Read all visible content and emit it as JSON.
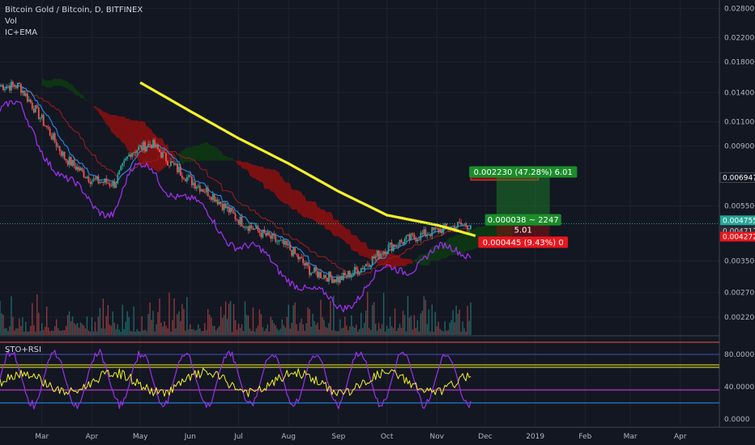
{
  "header": {
    "symbol_title": "Bitcoin Gold / Bitcoin, D, BITFINEX",
    "volume_label": "Vol",
    "indicator_label": "IC+EMA",
    "oscillator_label": "STO+RSI"
  },
  "colors": {
    "background": "#131722",
    "ema_line": "#f5f227",
    "rsi_line": "#9b30e8",
    "price_line_blue": "#2196f3",
    "cloud_bear": "#8b1010",
    "cloud_bull": "#0d3a12",
    "up_candle": "#26a69a",
    "down_candle": "#ef5350",
    "take_profit": "#1b8c2a",
    "stop_loss": "#e8161e"
  },
  "chart_data": [
    {
      "type": "candlestick",
      "scale": "log",
      "x_tick_labels": [
        "Mar",
        "Apr",
        "May",
        "Jun",
        "Jul",
        "Aug",
        "Sep",
        "Oct",
        "Nov",
        "Dec",
        "2019",
        "Feb",
        "Mar",
        "Apr"
      ],
      "y_tick_labels": [
        "0.028000",
        "0.022000",
        "0.018000",
        "0.014000",
        "0.011000",
        "0.009000",
        "0.005500",
        "0.003500",
        "0.002700",
        "0.002200"
      ],
      "y_tick_values": [
        0.028,
        0.022,
        0.018,
        0.014,
        0.011,
        0.009,
        0.0055,
        0.0035,
        0.0027,
        0.0022
      ],
      "ylim": [
        0.0019,
        0.03
      ],
      "close_path": [
        {
          "x": "2018-02-15",
          "y": 0.0148
        },
        {
          "x": "2018-03-01",
          "y": 0.0112
        },
        {
          "x": "2018-03-15",
          "y": 0.0082
        },
        {
          "x": "2018-04-01",
          "y": 0.0068
        },
        {
          "x": "2018-04-15",
          "y": 0.0066
        },
        {
          "x": "2018-04-25",
          "y": 0.0086
        },
        {
          "x": "2018-05-08",
          "y": 0.0092
        },
        {
          "x": "2018-05-20",
          "y": 0.0078
        },
        {
          "x": "2018-06-01",
          "y": 0.0068
        },
        {
          "x": "2018-06-15",
          "y": 0.006
        },
        {
          "x": "2018-07-01",
          "y": 0.0049
        },
        {
          "x": "2018-07-15",
          "y": 0.0044
        },
        {
          "x": "2018-08-01",
          "y": 0.0039
        },
        {
          "x": "2018-08-15",
          "y": 0.0032
        },
        {
          "x": "2018-09-01",
          "y": 0.003
        },
        {
          "x": "2018-09-15",
          "y": 0.0033
        },
        {
          "x": "2018-10-01",
          "y": 0.0039
        },
        {
          "x": "2018-10-15",
          "y": 0.0042
        },
        {
          "x": "2018-11-01",
          "y": 0.0045
        },
        {
          "x": "2018-11-15",
          "y": 0.0047
        },
        {
          "x": "2018-11-23",
          "y": 0.00472
        }
      ],
      "ema_path": [
        {
          "x": "2018-05-01",
          "y": 0.0152
        },
        {
          "x": "2018-06-01",
          "y": 0.012
        },
        {
          "x": "2018-07-01",
          "y": 0.0096
        },
        {
          "x": "2018-08-01",
          "y": 0.0078
        },
        {
          "x": "2018-09-01",
          "y": 0.0062
        },
        {
          "x": "2018-10-01",
          "y": 0.0051
        },
        {
          "x": "2018-11-01",
          "y": 0.0047
        },
        {
          "x": "2018-11-25",
          "y": 0.0043
        }
      ],
      "price_labels": [
        "0.006947",
        "0.004755",
        "0.004717",
        "0.004272"
      ],
      "price_label_values": [
        0.006947,
        0.004755,
        0.004717,
        0.004272
      ],
      "position": {
        "take_profit_label": "0.002230 (47.28%) 6.01",
        "entry_label": "0.000038 ~ 2247",
        "entry_sublabel": "5.01",
        "stop_loss_label": "0.000445 (9.43%) 0",
        "entry_price": 0.004717,
        "take_profit_price": 0.006947,
        "stop_loss_price": 0.004272,
        "start": "2018-12-08",
        "end": "2019-01-10"
      },
      "resistance_zone": {
        "from": 0.0068,
        "to": 0.0071,
        "start": "2018-11-22",
        "end": "2019-01-03"
      }
    },
    {
      "type": "line",
      "title": "STO+RSI",
      "y_tick_labels": [
        "80.0000",
        "40.0000",
        "0.0000"
      ],
      "y_tick_values": [
        80,
        40,
        0
      ],
      "ylim": [
        -8,
        102
      ],
      "levels": [
        {
          "value": 95,
          "color": "#ef5350"
        },
        {
          "value": 80,
          "color": "#3f51b5"
        },
        {
          "value": 67,
          "color": "#f5f227"
        },
        {
          "value": 64,
          "color": "#f5f227"
        },
        {
          "value": 36,
          "color": "#e040fb"
        },
        {
          "value": 20,
          "color": "#2196f3"
        }
      ]
    }
  ]
}
